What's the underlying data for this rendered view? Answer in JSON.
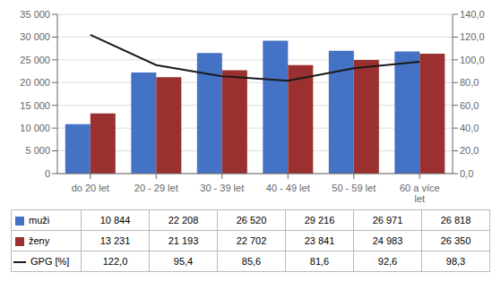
{
  "chart_data": {
    "type": "bar",
    "categories": [
      "do 20 let",
      "20 - 29 let",
      "30 - 39 let",
      "40 - 49 let",
      "50 - 59 let",
      "60 a více\nlet"
    ],
    "series": [
      {
        "name": "muži",
        "type": "bar",
        "color": "#4472C4",
        "values": [
          10844,
          22208,
          26520,
          29216,
          26971,
          26818
        ],
        "value_labels": [
          "10 844",
          "22 208",
          "26 520",
          "29 216",
          "26 971",
          "26 818"
        ]
      },
      {
        "name": "ženy",
        "type": "bar",
        "color": "#9B3030",
        "values": [
          13231,
          21193,
          22702,
          23841,
          24983,
          26350
        ],
        "value_labels": [
          "13 231",
          "21 193",
          "22 702",
          "23 841",
          "24 983",
          "26 350"
        ]
      },
      {
        "name": "GPG [%]",
        "type": "line",
        "axis": "y2",
        "color": "#1A1A1A",
        "values": [
          122.0,
          95.4,
          85.6,
          81.6,
          92.6,
          98.3
        ],
        "value_labels": [
          "122,0",
          "95,4",
          "85,6",
          "81,6",
          "92,6",
          "98,3"
        ]
      }
    ],
    "ylim": [
      0,
      35000
    ],
    "yticks": [
      0,
      {
        "value": 5000,
        "label": "5 000"
      },
      {
        "value": 10000,
        "label": "10 000"
      },
      {
        "value": 15000,
        "label": "15 000"
      },
      {
        "value": 20000,
        "label": "20 000"
      },
      {
        "value": 25000,
        "label": "25 000"
      },
      {
        "value": 30000,
        "label": "30 000"
      },
      {
        "value": 35000,
        "label": "35 000"
      }
    ],
    "y2lim": [
      0,
      140
    ],
    "y2ticks": [
      {
        "value": 0,
        "label": "0,0"
      },
      {
        "value": 20,
        "label": "20,0"
      },
      {
        "value": 40,
        "label": "40,0"
      },
      {
        "value": 60,
        "label": "60,0"
      },
      {
        "value": 80,
        "label": "80,0"
      },
      {
        "value": 100,
        "label": "100,0"
      },
      {
        "value": 120,
        "label": "120,0"
      },
      {
        "value": 140,
        "label": "140,0"
      }
    ],
    "grid": true
  }
}
